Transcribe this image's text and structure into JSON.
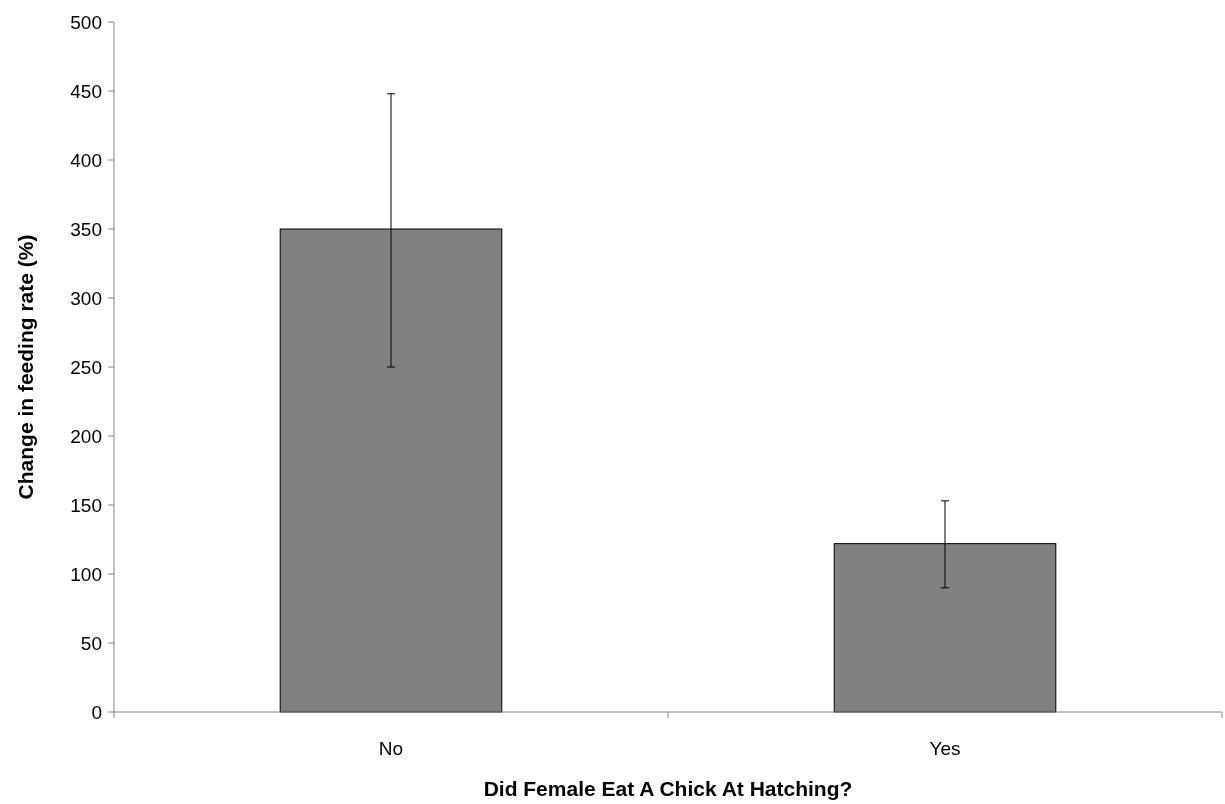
{
  "chart_data": {
    "type": "bar",
    "xlabel": "Did Female Eat A Chick At Hatching?",
    "ylabel": "Change in feeding rate (%)",
    "categories": [
      "No",
      "Yes"
    ],
    "values": [
      350,
      122
    ],
    "errors": [
      [
        250,
        448
      ],
      [
        90,
        153
      ]
    ],
    "color": "#808080",
    "ylim": [
      0,
      500
    ],
    "yticks": [
      0,
      50,
      100,
      150,
      200,
      250,
      300,
      350,
      400,
      450,
      500
    ],
    "grid": false
  }
}
